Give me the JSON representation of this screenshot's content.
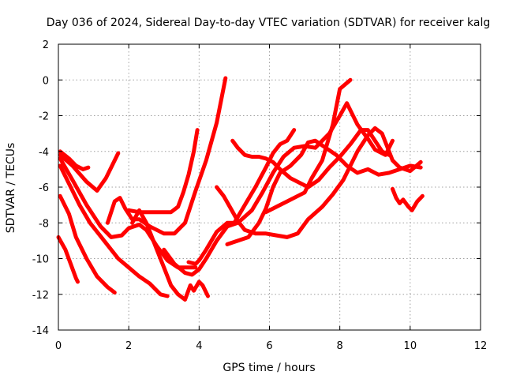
{
  "chart_data": {
    "type": "line",
    "title": "Day 036 of 2024, Sidereal Day-to-day VTEC variation (SDTVAR) for receiver kalg",
    "xlabel": "GPS time / hours",
    "ylabel": "SDTVAR / TECUs",
    "xlim": [
      0,
      12
    ],
    "ylim": [
      -14,
      2
    ],
    "xticks": [
      "0",
      "2",
      "4",
      "6",
      "8",
      "10",
      "12"
    ],
    "yticks": [
      "2",
      "0",
      "-2",
      "-4",
      "-6",
      "-8",
      "-10",
      "-12",
      "-14"
    ],
    "grid": true,
    "color": "#ff0000",
    "marker": "plus",
    "series": [
      {
        "name": "s1",
        "points": [
          [
            0,
            -8.8
          ],
          [
            0.2,
            -9.5
          ],
          [
            0.35,
            -10.3
          ],
          [
            0.5,
            -11.1
          ],
          [
            0.55,
            -11.3
          ]
        ]
      },
      {
        "name": "s2",
        "points": [
          [
            0.05,
            -6.5
          ],
          [
            0.3,
            -7.5
          ],
          [
            0.5,
            -8.8
          ],
          [
            0.8,
            -10.0
          ],
          [
            1.1,
            -11.0
          ],
          [
            1.4,
            -11.6
          ],
          [
            1.6,
            -11.9
          ]
        ]
      },
      {
        "name": "s3",
        "points": [
          [
            0.05,
            -4.8
          ],
          [
            0.3,
            -5.8
          ],
          [
            0.6,
            -7.0
          ],
          [
            0.9,
            -8.0
          ],
          [
            1.3,
            -9.0
          ],
          [
            1.7,
            -10.0
          ],
          [
            2.0,
            -10.5
          ],
          [
            2.3,
            -11.0
          ],
          [
            2.6,
            -11.4
          ],
          [
            2.9,
            -12.0
          ],
          [
            3.1,
            -12.1
          ]
        ]
      },
      {
        "name": "s4",
        "points": [
          [
            0.05,
            -4.0
          ],
          [
            0.3,
            -4.4
          ],
          [
            0.5,
            -4.8
          ],
          [
            0.7,
            -5.0
          ],
          [
            0.85,
            -4.9
          ]
        ]
      },
      {
        "name": "s5",
        "points": [
          [
            0.05,
            -4.2
          ],
          [
            0.4,
            -4.8
          ],
          [
            0.8,
            -5.7
          ],
          [
            1.1,
            -6.2
          ],
          [
            1.35,
            -5.5
          ],
          [
            1.55,
            -4.7
          ],
          [
            1.7,
            -4.1
          ]
        ]
      },
      {
        "name": "s6",
        "points": [
          [
            0.05,
            -4.4
          ],
          [
            0.4,
            -5.6
          ],
          [
            0.8,
            -7.0
          ],
          [
            1.2,
            -8.2
          ],
          [
            1.5,
            -8.8
          ],
          [
            1.8,
            -8.7
          ],
          [
            2.0,
            -8.3
          ],
          [
            2.3,
            -8.1
          ],
          [
            2.5,
            -8.4
          ],
          [
            2.8,
            -9.3
          ],
          [
            3.1,
            -10.1
          ],
          [
            3.4,
            -10.5
          ],
          [
            3.6,
            -10.5
          ],
          [
            3.9,
            -10.5
          ]
        ]
      },
      {
        "name": "s7",
        "points": [
          [
            1.4,
            -8.0
          ],
          [
            1.6,
            -6.8
          ],
          [
            1.75,
            -6.6
          ],
          [
            1.9,
            -7.2
          ],
          [
            2.1,
            -7.8
          ],
          [
            2.3,
            -7.8
          ],
          [
            2.6,
            -8.2
          ],
          [
            3.0,
            -8.6
          ],
          [
            3.3,
            -8.6
          ],
          [
            3.6,
            -8.0
          ],
          [
            3.9,
            -6.2
          ],
          [
            4.2,
            -4.5
          ],
          [
            4.5,
            -2.4
          ],
          [
            4.75,
            0.1
          ]
        ]
      },
      {
        "name": "s8",
        "points": [
          [
            2.0,
            -7.3
          ],
          [
            2.3,
            -7.4
          ],
          [
            2.6,
            -7.4
          ],
          [
            3.0,
            -7.4
          ],
          [
            3.2,
            -7.4
          ],
          [
            3.4,
            -7.1
          ],
          [
            3.55,
            -6.3
          ],
          [
            3.7,
            -5.3
          ],
          [
            3.85,
            -4.0
          ],
          [
            3.95,
            -2.8
          ]
        ]
      },
      {
        "name": "s9",
        "points": [
          [
            2.1,
            -8.0
          ],
          [
            2.3,
            -7.3
          ],
          [
            2.5,
            -8.0
          ],
          [
            2.8,
            -9.5
          ],
          [
            3.0,
            -10.5
          ],
          [
            3.2,
            -11.5
          ],
          [
            3.4,
            -12.0
          ],
          [
            3.6,
            -12.3
          ],
          [
            3.75,
            -11.5
          ],
          [
            3.85,
            -11.8
          ],
          [
            4.0,
            -11.3
          ],
          [
            4.1,
            -11.5
          ],
          [
            4.25,
            -12.1
          ]
        ]
      },
      {
        "name": "s10",
        "points": [
          [
            3.0,
            -9.5
          ],
          [
            3.3,
            -10.3
          ],
          [
            3.6,
            -10.8
          ],
          [
            3.8,
            -10.9
          ],
          [
            4.0,
            -10.6
          ],
          [
            4.2,
            -10.0
          ],
          [
            4.5,
            -9.0
          ],
          [
            4.8,
            -8.2
          ],
          [
            5.1,
            -8.0
          ],
          [
            5.5,
            -7.3
          ],
          [
            5.8,
            -6.3
          ],
          [
            6.1,
            -5.2
          ],
          [
            6.4,
            -4.3
          ],
          [
            6.7,
            -3.8
          ],
          [
            7.0,
            -3.7
          ],
          [
            7.3,
            -3.8
          ],
          [
            7.7,
            -3.0
          ],
          [
            8.0,
            -2.0
          ],
          [
            8.2,
            -1.3
          ],
          [
            8.5,
            -2.5
          ],
          [
            8.8,
            -3.3
          ],
          [
            9.0,
            -3.9
          ],
          [
            9.3,
            -4.2
          ],
          [
            9.5,
            -3.4
          ]
        ]
      },
      {
        "name": "s11",
        "points": [
          [
            3.7,
            -10.2
          ],
          [
            3.9,
            -10.3
          ],
          [
            4.0,
            -10.1
          ],
          [
            4.2,
            -9.5
          ],
          [
            4.5,
            -8.5
          ],
          [
            4.8,
            -8.0
          ],
          [
            5.0,
            -8.0
          ],
          [
            5.3,
            -7.0
          ],
          [
            5.6,
            -6.0
          ],
          [
            5.9,
            -4.9
          ],
          [
            6.1,
            -4.1
          ],
          [
            6.3,
            -3.6
          ],
          [
            6.5,
            -3.4
          ],
          [
            6.7,
            -2.8
          ]
        ]
      },
      {
        "name": "s12",
        "points": [
          [
            4.5,
            -6.0
          ],
          [
            4.7,
            -6.5
          ],
          [
            4.9,
            -7.2
          ],
          [
            5.1,
            -7.9
          ],
          [
            5.3,
            -8.4
          ],
          [
            5.6,
            -8.6
          ],
          [
            5.9,
            -8.6
          ],
          [
            6.2,
            -8.7
          ],
          [
            6.5,
            -8.8
          ],
          [
            6.8,
            -8.6
          ],
          [
            7.1,
            -7.8
          ],
          [
            7.5,
            -7.1
          ],
          [
            7.8,
            -6.4
          ],
          [
            8.1,
            -5.6
          ],
          [
            8.5,
            -4.0
          ],
          [
            8.8,
            -3.1
          ],
          [
            9.0,
            -2.7
          ],
          [
            9.2,
            -3.0
          ],
          [
            9.5,
            -4.5
          ],
          [
            9.7,
            -4.9
          ],
          [
            10.0,
            -5.1
          ],
          [
            10.3,
            -4.6
          ]
        ]
      },
      {
        "name": "s13",
        "points": [
          [
            4.8,
            -9.2
          ],
          [
            5.1,
            -9.0
          ],
          [
            5.4,
            -8.8
          ],
          [
            5.7,
            -8.0
          ],
          [
            5.9,
            -7.2
          ],
          [
            6.1,
            -6.0
          ],
          [
            6.3,
            -5.2
          ],
          [
            6.6,
            -4.8
          ],
          [
            6.9,
            -4.2
          ],
          [
            7.1,
            -3.5
          ],
          [
            7.3,
            -3.4
          ],
          [
            7.6,
            -3.8
          ],
          [
            7.9,
            -4.2
          ],
          [
            8.2,
            -4.8
          ],
          [
            8.5,
            -5.2
          ],
          [
            8.8,
            -5.0
          ],
          [
            9.1,
            -5.3
          ],
          [
            9.4,
            -5.2
          ],
          [
            9.7,
            -5.0
          ],
          [
            10.0,
            -4.8
          ],
          [
            10.3,
            -4.9
          ]
        ]
      },
      {
        "name": "s14",
        "points": [
          [
            4.95,
            -3.4
          ],
          [
            5.1,
            -3.8
          ],
          [
            5.3,
            -4.2
          ],
          [
            5.5,
            -4.3
          ],
          [
            5.7,
            -4.3
          ],
          [
            5.9,
            -4.4
          ],
          [
            6.1,
            -4.6
          ],
          [
            6.3,
            -5.0
          ],
          [
            6.6,
            -5.5
          ],
          [
            6.9,
            -5.8
          ],
          [
            7.1,
            -6.0
          ],
          [
            7.4,
            -5.6
          ],
          [
            7.7,
            -4.9
          ],
          [
            8.0,
            -4.3
          ],
          [
            8.3,
            -3.6
          ],
          [
            8.6,
            -2.8
          ],
          [
            8.8,
            -2.8
          ],
          [
            9.0,
            -3.4
          ],
          [
            9.2,
            -4.0
          ],
          [
            9.4,
            -4.2
          ]
        ]
      },
      {
        "name": "s15",
        "points": [
          [
            5.9,
            -7.4
          ],
          [
            6.2,
            -7.1
          ],
          [
            6.5,
            -6.8
          ],
          [
            6.8,
            -6.5
          ],
          [
            7.0,
            -6.3
          ],
          [
            7.2,
            -5.5
          ],
          [
            7.5,
            -4.5
          ],
          [
            7.8,
            -2.5
          ],
          [
            8.0,
            -0.5
          ],
          [
            8.3,
            0.0
          ]
        ]
      },
      {
        "name": "s16",
        "points": [
          [
            9.5,
            -6.1
          ],
          [
            9.6,
            -6.6
          ],
          [
            9.7,
            -6.9
          ],
          [
            9.8,
            -6.7
          ],
          [
            9.95,
            -7.1
          ],
          [
            10.05,
            -7.3
          ],
          [
            10.2,
            -6.8
          ],
          [
            10.35,
            -6.5
          ]
        ]
      }
    ]
  }
}
